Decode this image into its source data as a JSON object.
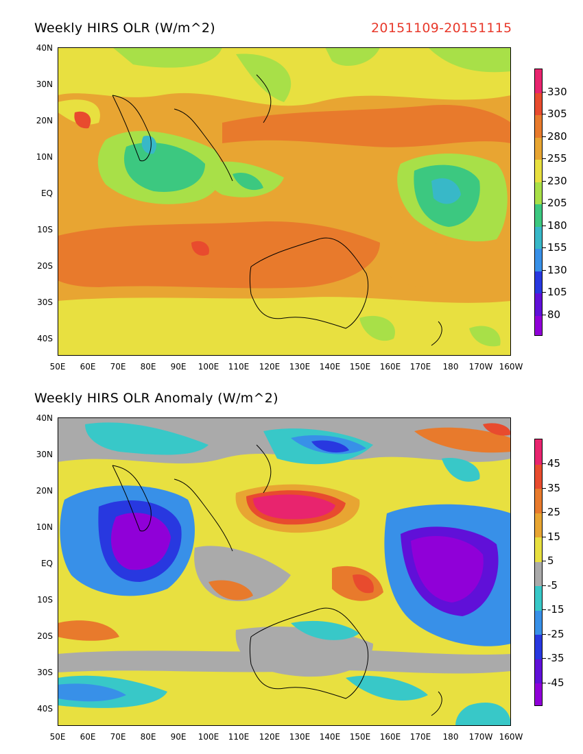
{
  "panel_top": {
    "title": "Weekly HIRS OLR (W/m^2)",
    "date_range": "20151109-20151115",
    "colorbar_labels": [
      "330",
      "305",
      "280",
      "255",
      "230",
      "205",
      "180",
      "155",
      "130",
      "105",
      "80"
    ],
    "colorbar_colors": [
      "#e8246e",
      "#e84b2e",
      "#e87a2c",
      "#e8a532",
      "#e8e040",
      "#a8e048",
      "#3cc880",
      "#38b8c8",
      "#3890e8",
      "#2838e0",
      "#9000d8"
    ]
  },
  "panel_bottom": {
    "title": "Weekly HIRS OLR Anomaly (W/m^2)",
    "colorbar_labels": [
      "45",
      "35",
      "25",
      "15",
      "5",
      "-5",
      "-15",
      "-25",
      "-35",
      "-45"
    ],
    "colorbar_colors": [
      "#e8246e",
      "#e84b2e",
      "#e87a2c",
      "#e8a532",
      "#e8e040",
      "#aaaaaa",
      "#38c8c8",
      "#3890e8",
      "#2838e0",
      "#6010d8",
      "#9000d8"
    ]
  },
  "lat_labels": [
    "40N",
    "30N",
    "20N",
    "10N",
    "EQ",
    "10S",
    "20S",
    "30S",
    "40S"
  ],
  "lon_labels": [
    "50E",
    "60E",
    "70E",
    "80E",
    "90E",
    "100E",
    "110E",
    "120E",
    "130E",
    "140E",
    "150E",
    "160E",
    "170E",
    "180",
    "170W",
    "160W"
  ]
}
